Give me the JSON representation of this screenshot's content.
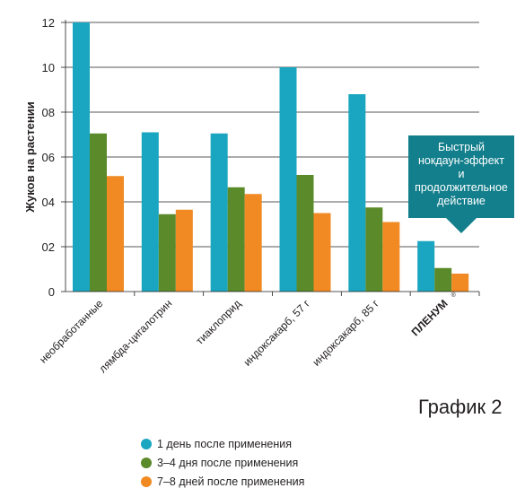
{
  "chart_data": {
    "type": "bar",
    "ylabel": "Жуков на растении",
    "ylim": [
      0,
      12
    ],
    "yticks": [
      "0",
      "02",
      "04",
      "06",
      "08",
      "10",
      "12"
    ],
    "categories": [
      "необработанные",
      "лямбда-цигалотрин",
      "тиаклоприд",
      "индоксакарб, 57 г",
      "индоксакарб, 85 г",
      "ПЛЕНУМ"
    ],
    "trademark_symbol": "®",
    "series": [
      {
        "name": "1 день после применения",
        "color": "#1aa6c0",
        "values": [
          12,
          7.1,
          7.05,
          10,
          8.8,
          2.25
        ]
      },
      {
        "name": "3–4 дня после применения",
        "color": "#5b8a2a",
        "values": [
          7.05,
          3.45,
          4.65,
          5.2,
          3.75,
          1.05
        ]
      },
      {
        "name": "7–8 дней после применения",
        "color": "#f18a22",
        "values": [
          5.15,
          3.65,
          4.35,
          3.5,
          3.1,
          0.8
        ]
      }
    ],
    "callout": {
      "lines": [
        "Быстрый",
        "нокдаун-эффект",
        "и",
        "продолжительное",
        "действие"
      ],
      "color": "#137f8c"
    },
    "grid": true,
    "legend_position": "bottom"
  },
  "caption": "График 2"
}
